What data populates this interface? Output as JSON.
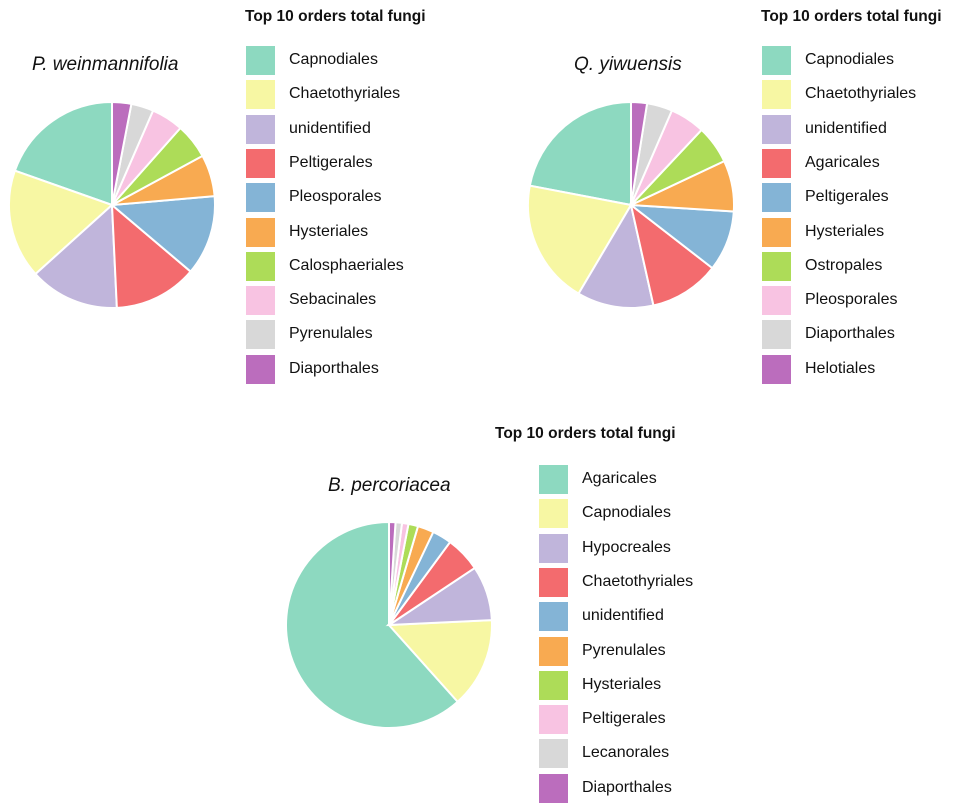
{
  "chart_data": [
    {
      "type": "pie",
      "title": "P. weinmannifolia",
      "legend_title": "Top 10 orders total fungi",
      "legend_position": "right",
      "slices": [
        {
          "label": "Capnodiales",
          "value": 19.5,
          "color": "#8DD9C0"
        },
        {
          "label": "Chaetothyriales",
          "value": 17.0,
          "color": "#F7F7A3"
        },
        {
          "label": "unidentified",
          "value": 14.0,
          "color": "#C0B5DB"
        },
        {
          "label": "Peltigerales",
          "value": 13.0,
          "color": "#F36B6E"
        },
        {
          "label": "Pleosporales",
          "value": 12.5,
          "color": "#84B4D6"
        },
        {
          "label": "Hysteriales",
          "value": 6.5,
          "color": "#F8AA51"
        },
        {
          "label": "Calosphaeriales",
          "value": 5.5,
          "color": "#ADDC58"
        },
        {
          "label": "Sebacinales",
          "value": 5.0,
          "color": "#F8C3E2"
        },
        {
          "label": "Pyrenulales",
          "value": 3.5,
          "color": "#D8D8D8"
        },
        {
          "label": "Diaporthales",
          "value": 3.0,
          "color": "#BB6DBD"
        }
      ]
    },
    {
      "type": "pie",
      "title": "Q. yiwuensis",
      "legend_title": "Top 10 orders total fungi",
      "legend_position": "right",
      "slices": [
        {
          "label": "Capnodiales",
          "value": 22.0,
          "color": "#8DD9C0"
        },
        {
          "label": "Chaetothyriales",
          "value": 19.5,
          "color": "#F7F7A3"
        },
        {
          "label": "unidentified",
          "value": 12.0,
          "color": "#C0B5DB"
        },
        {
          "label": "Agaricales",
          "value": 11.0,
          "color": "#F36B6E"
        },
        {
          "label": "Peltigerales",
          "value": 9.5,
          "color": "#84B4D6"
        },
        {
          "label": "Hysteriales",
          "value": 8.0,
          "color": "#F8AA51"
        },
        {
          "label": "Ostropales",
          "value": 6.0,
          "color": "#ADDC58"
        },
        {
          "label": "Pleosporales",
          "value": 5.5,
          "color": "#F8C3E2"
        },
        {
          "label": "Diaporthales",
          "value": 4.0,
          "color": "#D8D8D8"
        },
        {
          "label": "Helotiales",
          "value": 2.5,
          "color": "#BB6DBD"
        }
      ]
    },
    {
      "type": "pie",
      "title": "B. percoriacea",
      "legend_title": "Top 10 orders total fungi",
      "legend_position": "right",
      "slices": [
        {
          "label": "Agaricales",
          "value": 61.0,
          "color": "#8DD9C0"
        },
        {
          "label": "Capnodiales",
          "value": 14.0,
          "color": "#F7F7A3"
        },
        {
          "label": "Hypocreales",
          "value": 8.5,
          "color": "#C0B5DB"
        },
        {
          "label": "Chaetothyriales",
          "value": 5.5,
          "color": "#F36B6E"
        },
        {
          "label": "unidentified",
          "value": 3.0,
          "color": "#84B4D6"
        },
        {
          "label": "Pyrenulales",
          "value": 2.5,
          "color": "#F8AA51"
        },
        {
          "label": "Hysteriales",
          "value": 1.5,
          "color": "#ADDC58"
        },
        {
          "label": "Peltigerales",
          "value": 1.0,
          "color": "#F8C3E2"
        },
        {
          "label": "Lecanorales",
          "value": 1.0,
          "color": "#D8D8D8"
        },
        {
          "label": "Diaporthales",
          "value": 1.0,
          "color": "#BB6DBD"
        }
      ]
    }
  ]
}
